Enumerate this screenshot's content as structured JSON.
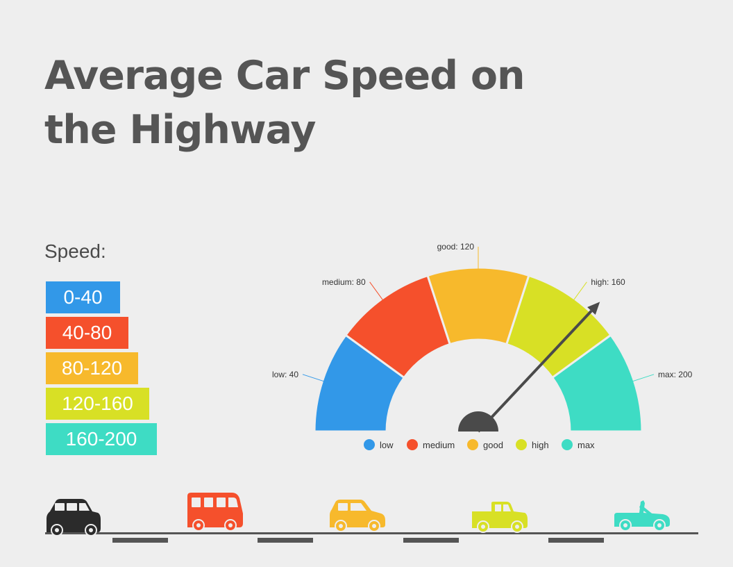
{
  "title": "Average Car Speed on the Highway",
  "legend_heading": "Speed:",
  "ranges": [
    {
      "label": "0-40",
      "color": "#3298e8"
    },
    {
      "label": "40-80",
      "color": "#f5502c"
    },
    {
      "label": "80-120",
      "color": "#f7b92c"
    },
    {
      "label": "120-160",
      "color": "#d8e025"
    },
    {
      "label": "160-200",
      "color": "#3edcc4"
    }
  ],
  "chart_data": {
    "type": "gauge",
    "segments": [
      {
        "name": "low",
        "value": 40,
        "label": "low: 40",
        "color": "#3298e8"
      },
      {
        "name": "medium",
        "value": 80,
        "label": "medium: 80",
        "color": "#f5502c"
      },
      {
        "name": "good",
        "value": 120,
        "label": "good: 120",
        "color": "#f7b92c"
      },
      {
        "name": "high",
        "value": 160,
        "label": "high: 160",
        "color": "#d8e025"
      },
      {
        "name": "max",
        "value": 200,
        "label": "max: 200",
        "color": "#3edcc4"
      }
    ],
    "range": [
      0,
      200
    ],
    "needle_value": 148,
    "legend": [
      "low",
      "medium",
      "good",
      "high",
      "max"
    ],
    "legend_placement": "bottom"
  },
  "cars": [
    {
      "icon": "suv-icon",
      "color": "#2b2b2b"
    },
    {
      "icon": "van-icon",
      "color": "#f5502c"
    },
    {
      "icon": "hatchback-icon",
      "color": "#f7b92c"
    },
    {
      "icon": "pickup-icon",
      "color": "#d8e025"
    },
    {
      "icon": "convertible-icon",
      "color": "#3edcc4"
    }
  ],
  "road_color": "#555555"
}
